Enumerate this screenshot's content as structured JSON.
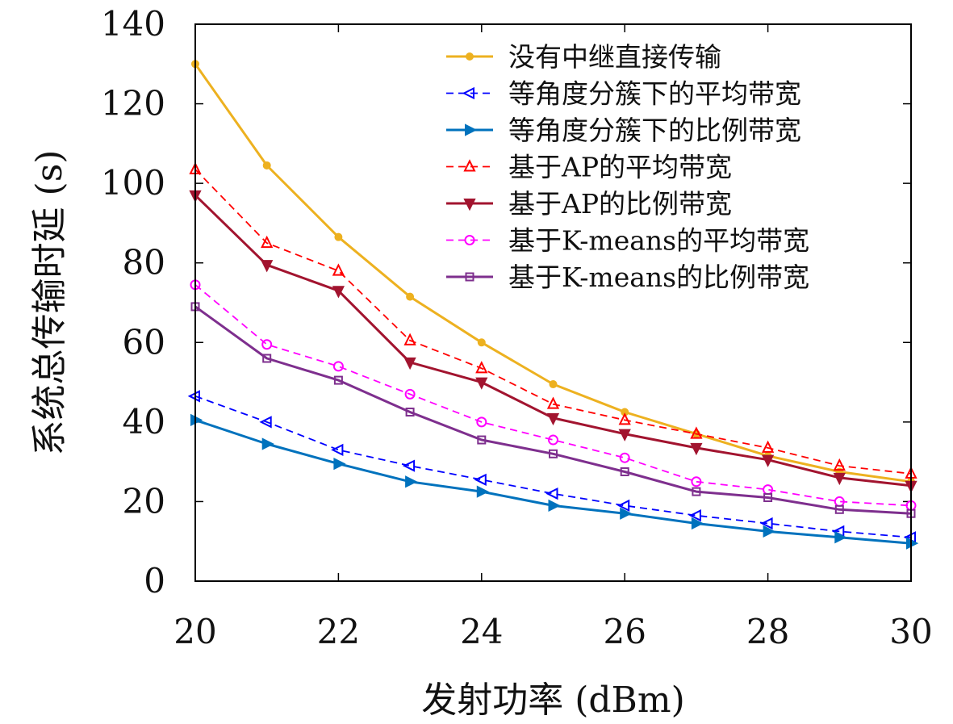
{
  "chart_data": {
    "type": "line",
    "xlabel": "发射功率 (dBm)",
    "ylabel": "系统总传输时延 (s)",
    "xlim": [
      20,
      30
    ],
    "ylim": [
      0,
      140
    ],
    "xticks": [
      "20",
      "22",
      "24",
      "26",
      "28",
      "30"
    ],
    "yticks": [
      "0",
      "20",
      "40",
      "60",
      "80",
      "100",
      "120",
      "140"
    ],
    "grid": false,
    "legend_position": "top-right",
    "x": [
      20,
      21,
      22,
      23,
      24,
      25,
      26,
      27,
      28,
      29,
      30
    ],
    "series": [
      {
        "name": "没有中继直接传输",
        "color": "#edb120",
        "dash": "solid",
        "marker": "dot",
        "values": [
          130,
          104.5,
          86.5,
          71.5,
          60,
          49.5,
          42.5,
          37,
          31.5,
          27.5,
          25
        ]
      },
      {
        "name": "等角度分簇下的平均带宽",
        "color": "#0000ff",
        "dash": "dashed",
        "marker": "triangle-left",
        "values": [
          46.5,
          40,
          33,
          29,
          25.5,
          22,
          19,
          16.5,
          14.5,
          12.5,
          11
        ]
      },
      {
        "name": "等角度分簇下的比例带宽",
        "color": "#0072bd",
        "dash": "solid",
        "marker": "triangle-right",
        "values": [
          40.5,
          34.5,
          29.5,
          25,
          22.5,
          19,
          17,
          14.5,
          12.5,
          11,
          9.5
        ]
      },
      {
        "name": "基于AP的平均带宽",
        "color": "#ff0000",
        "dash": "dashed",
        "marker": "triangle-up",
        "values": [
          103.5,
          85,
          78,
          60.5,
          53.5,
          44.5,
          40.5,
          37,
          33.5,
          29,
          27
        ]
      },
      {
        "name": "基于AP的比例带宽",
        "color": "#a2142f",
        "dash": "solid",
        "marker": "triangle-down",
        "values": [
          97,
          79.5,
          73,
          55,
          50,
          41,
          37,
          33.5,
          30.5,
          26,
          24
        ]
      },
      {
        "name": "基于K-means的平均带宽",
        "color": "#ff00ff",
        "dash": "dashed",
        "marker": "circle",
        "values": [
          74.5,
          59.5,
          54,
          47,
          40,
          35.5,
          31,
          25,
          23,
          20,
          19
        ]
      },
      {
        "name": "基于K-means的比例带宽",
        "color": "#7e2f8e",
        "dash": "solid",
        "marker": "square",
        "values": [
          69,
          56,
          50.5,
          42.5,
          35.5,
          32,
          27.5,
          22.5,
          21,
          18,
          17
        ]
      }
    ]
  }
}
